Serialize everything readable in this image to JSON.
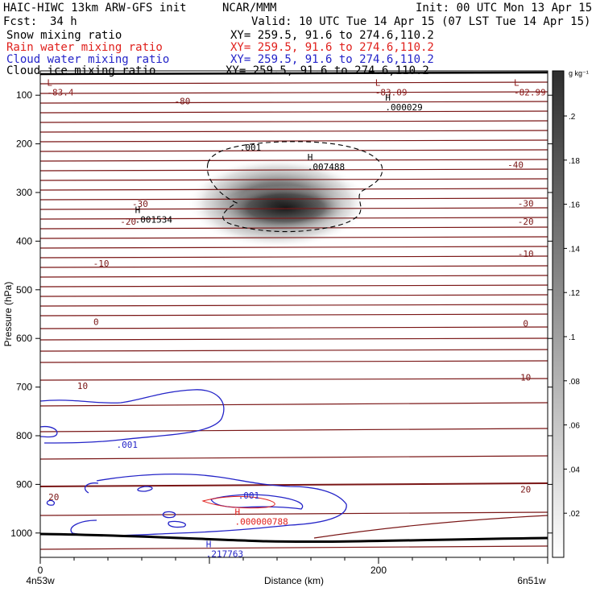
{
  "header": {
    "title_left": "HAIC-HIWC 13km ARW-GFS init",
    "title_center": "NCAR/MMM",
    "init": "Init: 00 UTC Mon 13 Apr 15",
    "fcst_label": "Fcst:",
    "fcst_value": "34 h",
    "valid": "Valid: 10 UTC Tue 14 Apr 15 (07 LST Tue 14 Apr 15)"
  },
  "fields": [
    {
      "name": "Snow mixing ratio",
      "xy": "XY= 259.5, 91.6 to 274.6,110.2",
      "color": "#000000"
    },
    {
      "name": "Rain water mixing ratio",
      "xy": "XY= 259.5, 91.6 to 274.6,110.2",
      "color": "#e0201c"
    },
    {
      "name": "Cloud water mixing ratio",
      "xy": "XY= 259.5, 91.6 to 274.6,110.2",
      "color": "#2424c8"
    },
    {
      "name": "Cloud ice mixing ratio",
      "xy": "XY= 259.5, 91.6 to 274.6,110.2",
      "color": "#000000"
    }
  ],
  "chart_data": {
    "type": "contour",
    "xlabel": "Distance (km)",
    "ylabel": "Pressure (hPa)",
    "xlim": [
      0,
      300
    ],
    "ylim": [
      1050,
      50
    ],
    "xticks": [
      0,
      200
    ],
    "yticks": [
      100,
      200,
      300,
      400,
      500,
      600,
      700,
      800,
      900,
      1000
    ],
    "x_endpoints": {
      "left": "4n53w",
      "right": "6n51w"
    },
    "colorbar": {
      "units": "g kg⁻¹",
      "ticks": [
        ".2",
        ".18",
        ".16",
        ".14",
        ".12",
        ".1",
        ".08",
        ".06",
        ".04",
        ".02"
      ]
    },
    "temperature_labels": [
      {
        "text": "-80",
        "x": 84,
        "p": 112
      },
      {
        "text": "-40",
        "x": 281,
        "p": 243
      },
      {
        "text": "-30",
        "x": 59,
        "p": 323
      },
      {
        "text": "-30",
        "x": 287,
        "p": 322
      },
      {
        "text": "-20",
        "x": 52,
        "p": 360
      },
      {
        "text": "-20",
        "x": 287,
        "p": 360
      },
      {
        "text": "-10",
        "x": 36,
        "p": 446
      },
      {
        "text": "-10",
        "x": 287,
        "p": 426
      },
      {
        "text": "0",
        "x": 33,
        "p": 566
      },
      {
        "text": "0",
        "x": 287,
        "p": 569
      },
      {
        "text": "10",
        "x": 25,
        "p": 697
      },
      {
        "text": "10",
        "x": 287,
        "p": 680
      },
      {
        "text": "20",
        "x": 8,
        "p": 926
      },
      {
        "text": "20",
        "x": 287,
        "p": 910
      }
    ],
    "extrema": [
      {
        "type": "L",
        "value": "-83.4",
        "x": 4,
        "p": 81,
        "color": "#8b1a1a"
      },
      {
        "type": "L",
        "value": "-83.09",
        "x": 198,
        "p": 81,
        "color": "#8b1a1a"
      },
      {
        "type": "L",
        "value": "-82.99",
        "x": 280,
        "p": 81,
        "color": "#8b1a1a"
      },
      {
        "type": "H",
        "value": ".000029",
        "x": 204,
        "p": 111,
        "color": "#000000"
      },
      {
        "type": "H",
        "value": ".007488",
        "x": 158,
        "p": 234,
        "color": "#000000"
      },
      {
        "type": "H",
        "value": ".001534",
        "x": 56,
        "p": 342,
        "color": "#000000"
      },
      {
        "type": "H",
        "value": ".000000788",
        "x": 115,
        "p": 963,
        "color": "#e0201c"
      },
      {
        "type": "H",
        "value": ".217763",
        "x": 98,
        "p": 1029,
        "color": "#2424c8"
      }
    ],
    "cloud_ice_contour": {
      "level": ".001",
      "label_x": 118,
      "label_p": 214
    },
    "cloud_water_contours": [
      {
        "level": ".001",
        "label_x": 45,
        "label_p": 825
      },
      {
        "level": ".001",
        "label_x": 117,
        "label_p": 929
      }
    ],
    "snow_max_g_per_kg": 0.2
  }
}
